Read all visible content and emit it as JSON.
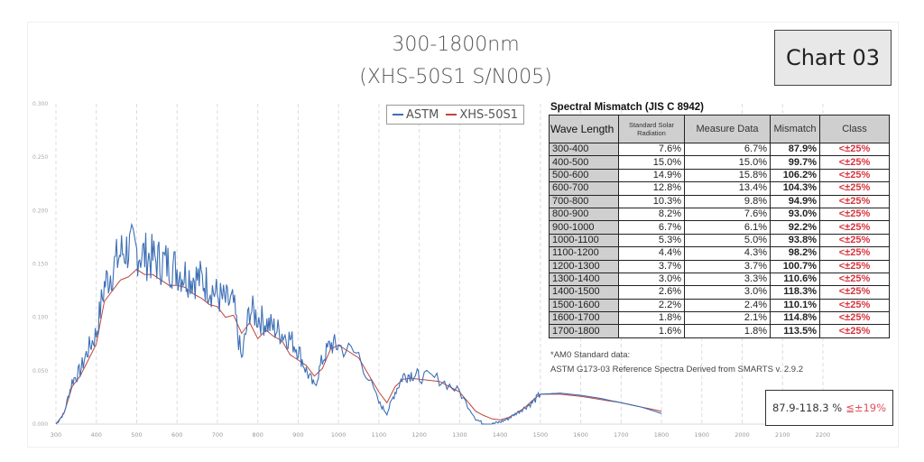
{
  "header": {
    "title_line1": "300-1800nm",
    "title_line2": "(XHS-50S1 S/N005)",
    "badge": "Chart 03"
  },
  "legend": {
    "items": [
      {
        "label": "ASTM",
        "color": "#3d6fb5"
      },
      {
        "label": "XHS-50S1",
        "color": "#c0453d"
      }
    ]
  },
  "table": {
    "title": "Spectral Mismatch (JIS C 8942)",
    "headers": [
      "Wave Length",
      "Standard Solar Radiation",
      "Measure Data",
      "Mismatch",
      "Class"
    ],
    "rows": [
      {
        "wl": "300-400",
        "std": "7.6%",
        "meas": "6.7%",
        "mis": "87.9%",
        "cls": "<±25%"
      },
      {
        "wl": "400-500",
        "std": "15.0%",
        "meas": "15.0%",
        "mis": "99.7%",
        "cls": "<±25%"
      },
      {
        "wl": "500-600",
        "std": "14.9%",
        "meas": "15.8%",
        "mis": "106.2%",
        "cls": "<±25%"
      },
      {
        "wl": "600-700",
        "std": "12.8%",
        "meas": "13.4%",
        "mis": "104.3%",
        "cls": "<±25%"
      },
      {
        "wl": "700-800",
        "std": "10.3%",
        "meas": "9.8%",
        "mis": "94.9%",
        "cls": "<±25%"
      },
      {
        "wl": "800-900",
        "std": "8.2%",
        "meas": "7.6%",
        "mis": "93.0%",
        "cls": "<±25%"
      },
      {
        "wl": "900-1000",
        "std": "6.7%",
        "meas": "6.1%",
        "mis": "92.2%",
        "cls": "<±25%"
      },
      {
        "wl": "1000-1100",
        "std": "5.3%",
        "meas": "5.0%",
        "mis": "93.8%",
        "cls": "<±25%"
      },
      {
        "wl": "1100-1200",
        "std": "4.4%",
        "meas": "4.3%",
        "mis": "98.2%",
        "cls": "<±25%"
      },
      {
        "wl": "1200-1300",
        "std": "3.7%",
        "meas": "3.7%",
        "mis": "100.7%",
        "cls": "<±25%"
      },
      {
        "wl": "1300-1400",
        "std": "3.0%",
        "meas": "3.3%",
        "mis": "110.6%",
        "cls": "<±25%"
      },
      {
        "wl": "1400-1500",
        "std": "2.6%",
        "meas": "3.0%",
        "mis": "118.3%",
        "cls": "<±25%"
      },
      {
        "wl": "1500-1600",
        "std": "2.2%",
        "meas": "2.4%",
        "mis": "110.1%",
        "cls": "<±25%"
      },
      {
        "wl": "1600-1700",
        "std": "1.8%",
        "meas": "2.1%",
        "mis": "114.8%",
        "cls": "<±25%"
      },
      {
        "wl": "1700-1800",
        "std": "1.6%",
        "meas": "1.8%",
        "mis": "113.5%",
        "cls": "<±25%"
      }
    ],
    "note1": "*AM0 Standard data:",
    "note2": "ASTM G173-03 Reference Spectra Derived from SMARTS v. 2.9.2"
  },
  "summary": {
    "range": "87.9-118.3 %",
    "class": "≦±19%"
  },
  "colors": {
    "astm": "#3d6fb5",
    "xhs": "#c0453d",
    "class_red": "#d8343d"
  },
  "chart_data": {
    "type": "line",
    "title": "300-1800nm (XHS-50S1 S/N005)",
    "xlabel": "",
    "ylabel": "",
    "xlim": [
      300,
      2200
    ],
    "ylim": [
      0,
      0.3
    ],
    "x_ticks": [
      "300",
      "400",
      "500",
      "600",
      "700",
      "800",
      "900",
      "1000",
      "1100",
      "1200",
      "1300",
      "1400",
      "1500",
      "1600",
      "1700",
      "1800",
      "1900",
      "2000",
      "2100",
      "2200"
    ],
    "y_ticks": [
      "0.000",
      "0.050",
      "0.100",
      "0.150",
      "0.200",
      "0.250",
      "0.300"
    ],
    "grid": "vertical dashed",
    "legend_position": "top-center",
    "series": [
      {
        "name": "ASTM",
        "x": [
          300,
          320,
          340,
          360,
          380,
          400,
          420,
          440,
          460,
          480,
          500,
          520,
          540,
          560,
          580,
          600,
          620,
          640,
          660,
          680,
          700,
          720,
          740,
          760,
          780,
          800,
          820,
          840,
          860,
          880,
          900,
          920,
          940,
          960,
          980,
          1000,
          1050,
          1100,
          1120,
          1140,
          1160,
          1180,
          1200,
          1250,
          1300,
          1340,
          1360,
          1380,
          1400,
          1420,
          1440,
          1460,
          1480,
          1500,
          1550,
          1600,
          1650,
          1700,
          1750,
          1800
        ],
        "values": [
          0.0,
          0.01,
          0.04,
          0.05,
          0.07,
          0.085,
          0.13,
          0.145,
          0.16,
          0.165,
          0.162,
          0.158,
          0.155,
          0.152,
          0.15,
          0.145,
          0.14,
          0.138,
          0.135,
          0.13,
          0.12,
          0.115,
          0.112,
          0.06,
          0.108,
          0.1,
          0.095,
          0.09,
          0.085,
          0.08,
          0.07,
          0.05,
          0.035,
          0.06,
          0.075,
          0.073,
          0.065,
          0.02,
          0.01,
          0.03,
          0.045,
          0.047,
          0.045,
          0.042,
          0.03,
          0.005,
          0.0,
          0.0,
          0.002,
          0.005,
          0.01,
          0.015,
          0.02,
          0.028,
          0.029,
          0.027,
          0.024,
          0.02,
          0.016,
          0.01
        ]
      },
      {
        "name": "XHS-50S1",
        "x": [
          300,
          320,
          340,
          360,
          380,
          400,
          420,
          440,
          460,
          480,
          500,
          520,
          540,
          560,
          580,
          600,
          620,
          640,
          660,
          680,
          700,
          720,
          740,
          760,
          780,
          800,
          820,
          840,
          860,
          880,
          900,
          920,
          940,
          960,
          980,
          1000,
          1050,
          1100,
          1120,
          1140,
          1160,
          1180,
          1200,
          1250,
          1300,
          1340,
          1360,
          1380,
          1400,
          1420,
          1440,
          1460,
          1480,
          1500,
          1550,
          1600,
          1650,
          1700,
          1750,
          1800
        ],
        "values": [
          0.0,
          0.01,
          0.035,
          0.045,
          0.06,
          0.075,
          0.115,
          0.125,
          0.135,
          0.138,
          0.145,
          0.14,
          0.14,
          0.135,
          0.13,
          0.13,
          0.128,
          0.122,
          0.118,
          0.112,
          0.11,
          0.1,
          0.102,
          0.085,
          0.095,
          0.08,
          0.088,
          0.082,
          0.078,
          0.065,
          0.06,
          0.055,
          0.045,
          0.052,
          0.07,
          0.074,
          0.062,
          0.03,
          0.02,
          0.035,
          0.042,
          0.043,
          0.042,
          0.04,
          0.03,
          0.012,
          0.008,
          0.005,
          0.004,
          0.006,
          0.01,
          0.015,
          0.022,
          0.028,
          0.028,
          0.026,
          0.023,
          0.02,
          0.016,
          0.012
        ]
      }
    ]
  }
}
